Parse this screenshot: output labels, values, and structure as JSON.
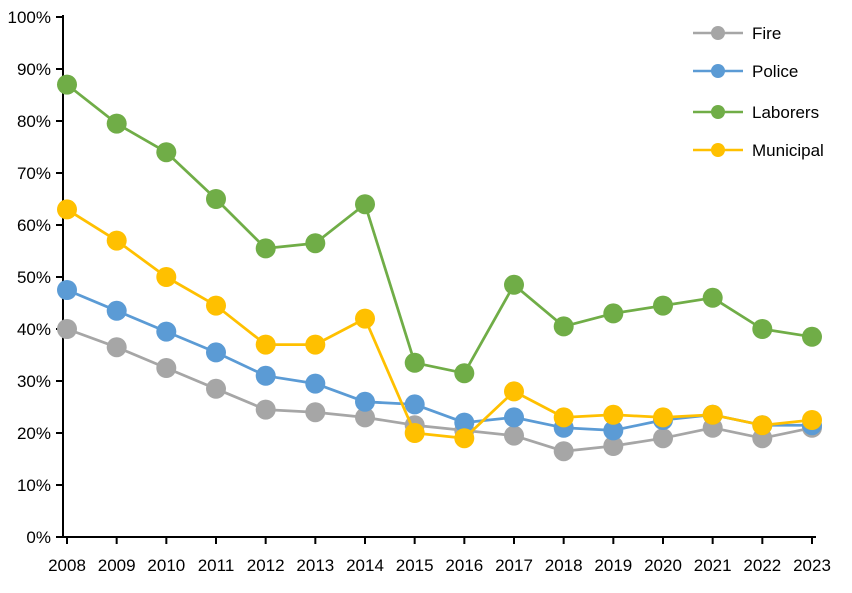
{
  "chart_data": {
    "type": "line",
    "title": "",
    "xlabel": "",
    "ylabel": "",
    "x": [
      2008,
      2009,
      2010,
      2011,
      2012,
      2013,
      2014,
      2015,
      2016,
      2017,
      2018,
      2019,
      2020,
      2021,
      2022,
      2023
    ],
    "series": [
      {
        "name": "Fire",
        "color": "#A6A6A6",
        "values": [
          40,
          36.5,
          32.5,
          28.5,
          24.5,
          24,
          23,
          21.5,
          20.5,
          19.5,
          16.5,
          17.5,
          19,
          21,
          19,
          21
        ]
      },
      {
        "name": "Police",
        "color": "#5B9BD5",
        "values": [
          47.5,
          43.5,
          39.5,
          35.5,
          31,
          29.5,
          26,
          25.5,
          22,
          23,
          21,
          20.5,
          22.5,
          23.5,
          21.5,
          21.5
        ]
      },
      {
        "name": "Laborers",
        "color": "#70AD47",
        "values": [
          87,
          79.5,
          74,
          65,
          55.5,
          56.5,
          64,
          33.5,
          31.5,
          48.5,
          40.5,
          43,
          44.5,
          46,
          40,
          38.5
        ]
      },
      {
        "name": "Municipal",
        "color": "#FFC000",
        "values": [
          63,
          57,
          50,
          44.5,
          37,
          37,
          42,
          20,
          19,
          28,
          23,
          23.5,
          23,
          23.5,
          21.5,
          22.5
        ]
      }
    ],
    "ylim": [
      0,
      100
    ],
    "y_ticks": [
      0,
      10,
      20,
      30,
      40,
      50,
      60,
      70,
      80,
      90,
      100
    ],
    "y_tick_labels": [
      "0%",
      "10%",
      "20%",
      "30%",
      "40%",
      "50%",
      "60%",
      "70%",
      "80%",
      "90%",
      "100%"
    ],
    "x_tick_labels": [
      "2008",
      "2009",
      "2010",
      "2011",
      "2012",
      "2013",
      "2014",
      "2015",
      "2016",
      "2017",
      "2018",
      "2019",
      "2020",
      "2021",
      "2022",
      "2023"
    ],
    "grid": false,
    "legend_position": "top-right",
    "legend": [
      "Fire",
      "Police",
      "Laborers",
      "Municipal"
    ],
    "axis_color": "#000000"
  }
}
